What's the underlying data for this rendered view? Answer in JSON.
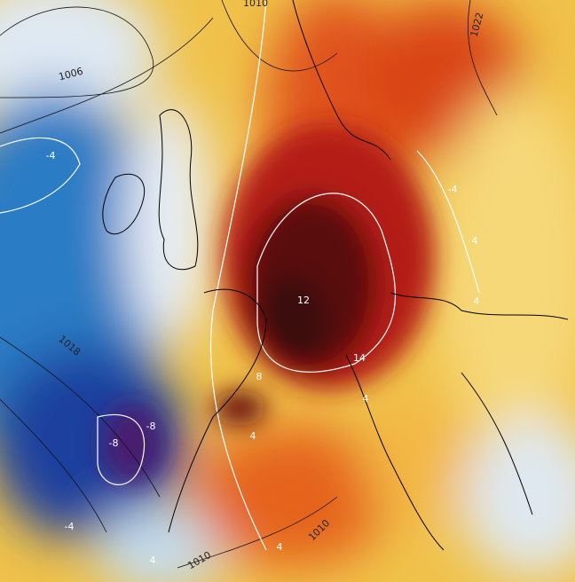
{
  "map": {
    "isobar_labels": [
      "1010",
      "1006",
      "1022",
      "1018",
      "1010",
      "1010"
    ],
    "anomaly_labels": [
      "-4",
      "-4",
      "4",
      "4",
      "12",
      "8",
      "14",
      "4",
      "-8",
      "-8",
      "4",
      "-4",
      "4",
      "4"
    ]
  }
}
